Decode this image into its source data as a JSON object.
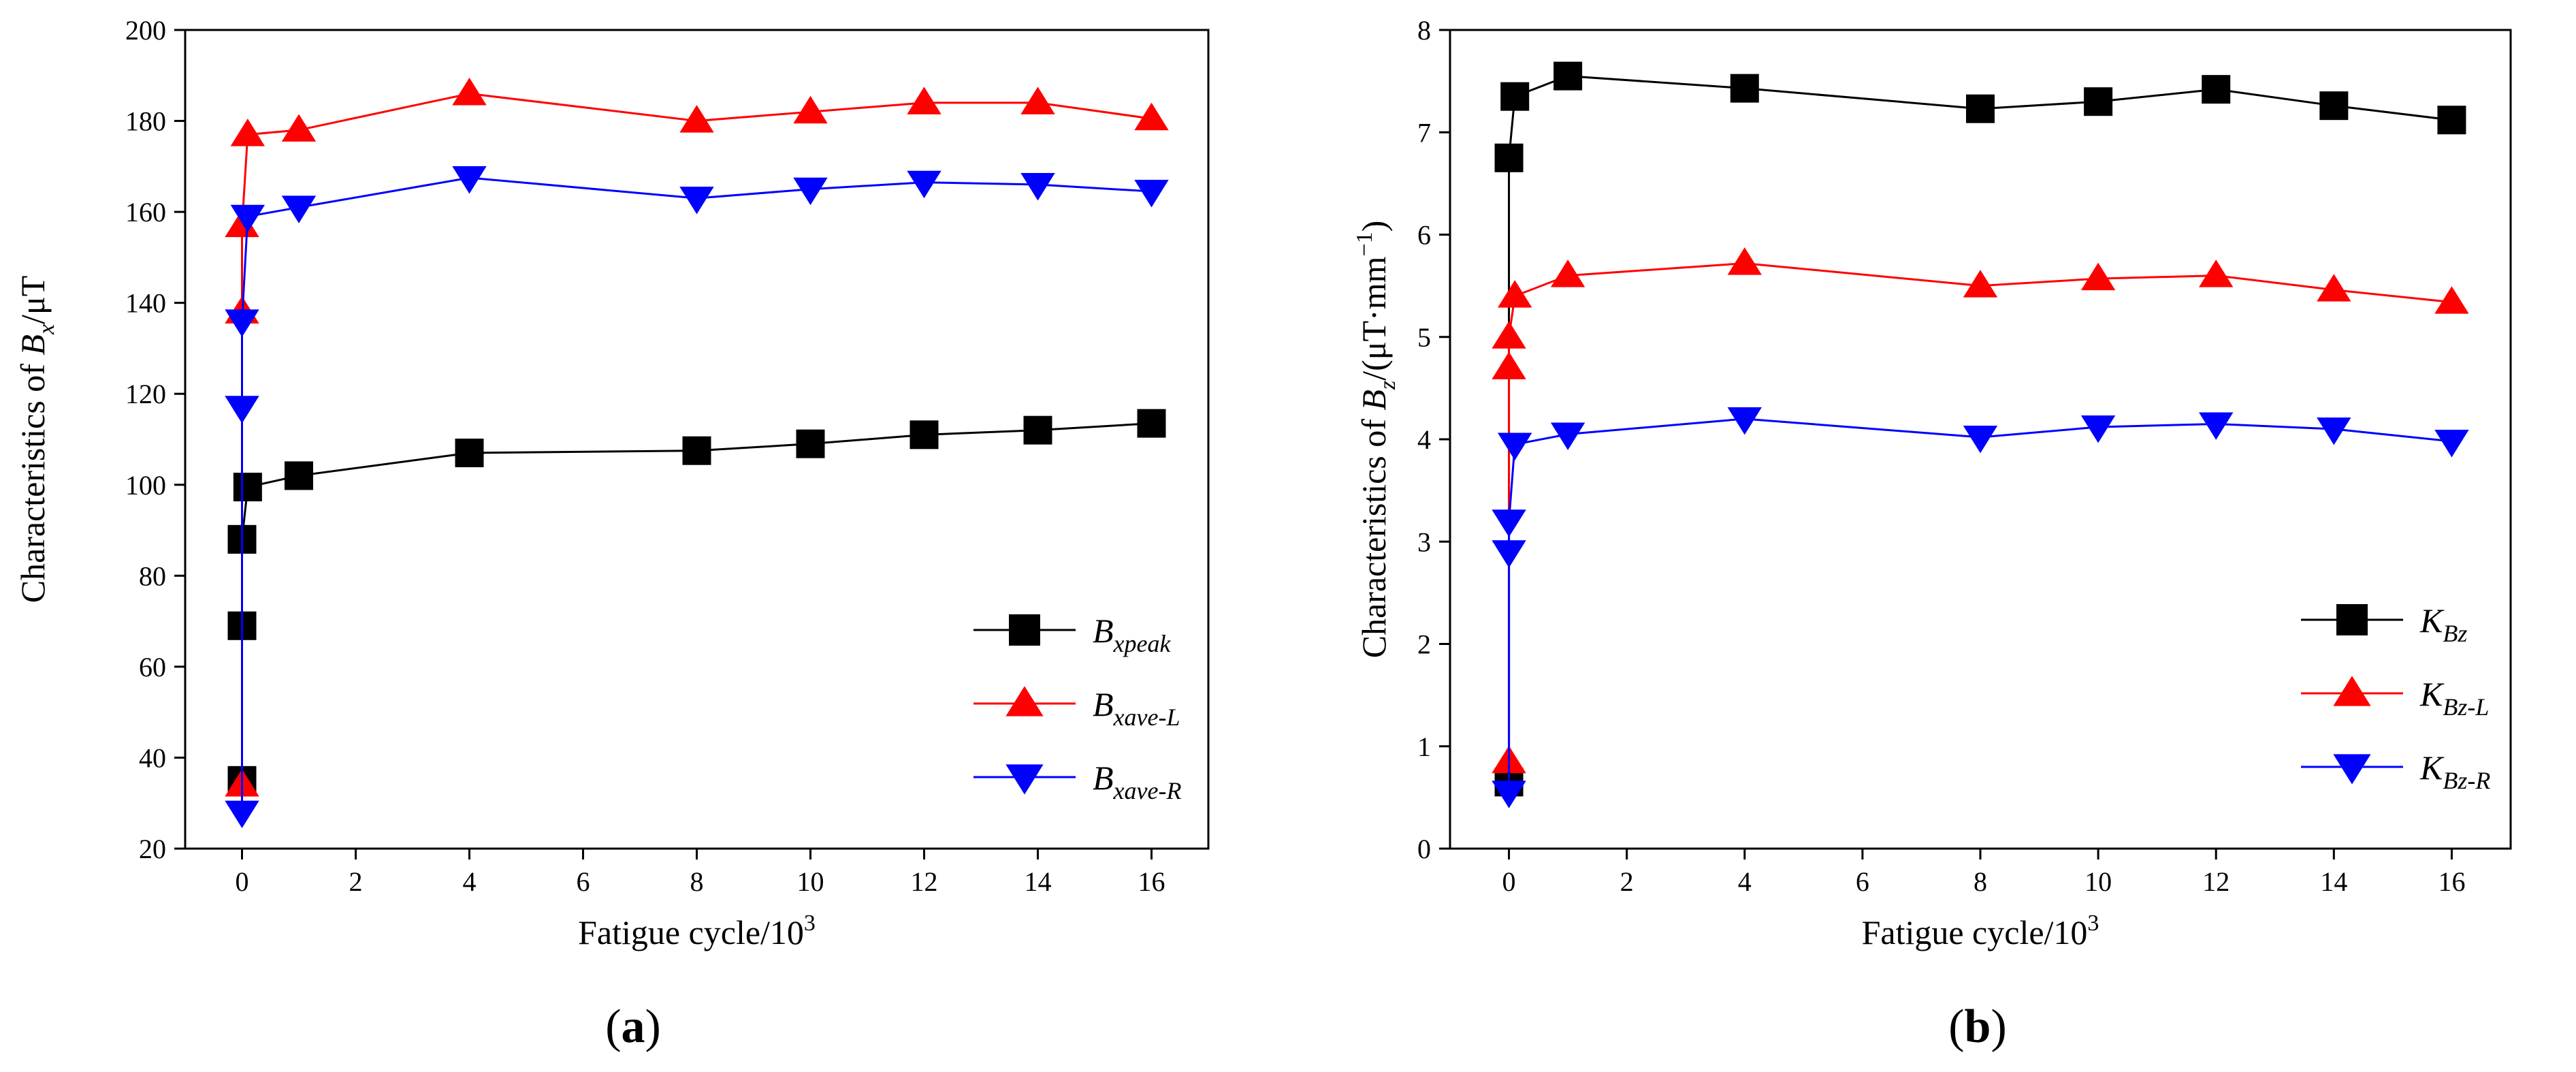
{
  "chart_data": [
    {
      "id": "a",
      "type": "line",
      "panel_label": "a",
      "xlabel": "Fatigue cycle/10",
      "xlabel_sup": "3",
      "ylabel_prefix": "Characteristics of ",
      "ylabel_var": "B",
      "ylabel_sub": "x",
      "ylabel_suffix": "/μT",
      "xlim": [
        -1,
        17
      ],
      "ylim": [
        20,
        200
      ],
      "xticks": [
        0,
        2,
        4,
        6,
        8,
        10,
        12,
        14,
        16
      ],
      "yticks": [
        20,
        40,
        60,
        80,
        100,
        120,
        140,
        160,
        180,
        200
      ],
      "legend_position": "bottom-right",
      "series": [
        {
          "name": "B_xpeak",
          "legend_main": "B",
          "legend_sub": "xpeak",
          "color": "#000000",
          "marker": "square",
          "x": [
            0,
            0,
            0,
            0,
            0.1,
            1,
            4,
            8,
            10,
            12,
            14,
            16
          ],
          "y": [
            35,
            69,
            88,
            88,
            99.5,
            102,
            107,
            107.5,
            109,
            111,
            112,
            113.5
          ]
        },
        {
          "name": "B_xave-L",
          "legend_main": "B",
          "legend_sub": "xave-L",
          "color": "#ff0000",
          "marker": "triangle-up",
          "x": [
            0,
            0,
            0,
            0.1,
            1,
            4,
            8,
            10,
            12,
            14,
            16
          ],
          "y": [
            34,
            138,
            157,
            177,
            178,
            186,
            180,
            182,
            184,
            184,
            180.5
          ]
        },
        {
          "name": "B_xave-R",
          "legend_main": "B",
          "legend_sub": "xave-R",
          "color": "#0000ff",
          "marker": "triangle-down",
          "x": [
            0,
            0,
            0,
            0.1,
            1,
            4,
            8,
            10,
            12,
            14,
            16
          ],
          "y": [
            28,
            117,
            136,
            159,
            161,
            167.5,
            163,
            165,
            166.5,
            166,
            164.5
          ]
        }
      ]
    },
    {
      "id": "b",
      "type": "line",
      "panel_label": "b",
      "xlabel": "Fatigue cycle/10",
      "xlabel_sup": "3",
      "ylabel_prefix": "Characteristics of ",
      "ylabel_var": "B",
      "ylabel_sub": "z",
      "ylabel_suffix": "/(μT·mm",
      "ylabel_sup": "−1",
      "ylabel_end": ")",
      "xlim": [
        -1,
        17
      ],
      "ylim": [
        0,
        8
      ],
      "xticks": [
        0,
        2,
        4,
        6,
        8,
        10,
        12,
        14,
        16
      ],
      "yticks": [
        0,
        1,
        2,
        3,
        4,
        5,
        6,
        7,
        8
      ],
      "legend_position": "bottom-right",
      "series": [
        {
          "name": "K_Bz",
          "legend_main": "K",
          "legend_sub": "Bz",
          "color": "#000000",
          "marker": "square",
          "x": [
            0,
            0,
            0.1,
            1,
            4,
            8,
            10,
            12,
            14,
            16
          ],
          "y": [
            0.65,
            6.75,
            7.35,
            7.55,
            7.43,
            7.23,
            7.3,
            7.42,
            7.26,
            7.12
          ]
        },
        {
          "name": "K_Bz-L",
          "legend_main": "K",
          "legend_sub": "Bz-L",
          "color": "#ff0000",
          "marker": "triangle-up",
          "x": [
            0,
            0,
            0,
            0.1,
            1,
            4,
            8,
            10,
            12,
            14,
            16
          ],
          "y": [
            0.85,
            4.7,
            5.0,
            5.4,
            5.6,
            5.72,
            5.5,
            5.57,
            5.6,
            5.46,
            5.34
          ]
        },
        {
          "name": "K_Bz-R",
          "legend_main": "K",
          "legend_sub": "Bz-R",
          "color": "#0000ff",
          "marker": "triangle-down",
          "x": [
            0,
            0,
            0,
            0.1,
            1,
            4,
            8,
            10,
            12,
            14,
            16
          ],
          "y": [
            0.55,
            2.9,
            3.2,
            3.95,
            4.05,
            4.2,
            4.02,
            4.12,
            4.15,
            4.1,
            3.98
          ]
        }
      ]
    }
  ]
}
